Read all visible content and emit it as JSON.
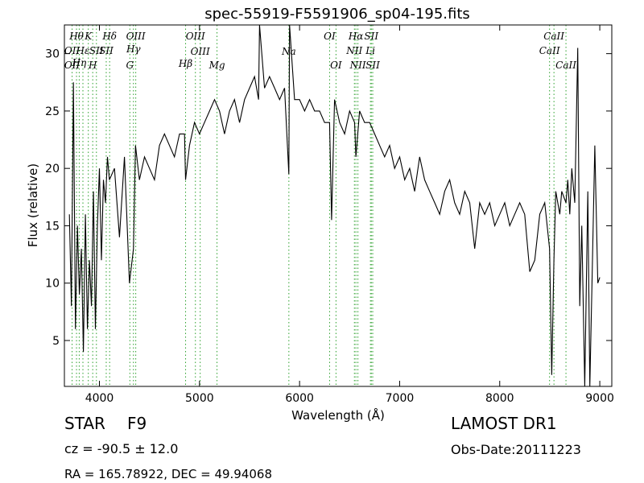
{
  "chart_data": {
    "type": "line",
    "title": "spec-55919-F5591906_sp04-195.fits",
    "xlabel": "Wavelength (Å)",
    "ylabel": "Flux (relative)",
    "xlim": [
      3650,
      9120
    ],
    "ylim": [
      1.0,
      32.5
    ],
    "xticks": [
      4000,
      5000,
      6000,
      7000,
      8000,
      9000
    ],
    "yticks": [
      5,
      10,
      15,
      20,
      25,
      30
    ],
    "grid": false,
    "line_color": "#000000",
    "marker_color": "#2ca02c",
    "series": [
      {
        "x": [
          3700,
          3720,
          3740,
          3760,
          3780,
          3800,
          3820,
          3840,
          3860,
          3880,
          3900,
          3920,
          3940,
          3960,
          3980,
          4000,
          4020,
          4040,
          4060,
          4080,
          4100,
          4150,
          4200,
          4250,
          4300,
          4340,
          4360,
          4400,
          4450,
          4500,
          4550,
          4600,
          4650,
          4700,
          4750,
          4800,
          4850,
          4861,
          4900,
          4950,
          5000,
          5050,
          5100,
          5150,
          5200,
          5250,
          5300,
          5350,
          5400,
          5450,
          5500,
          5550,
          5590,
          5600,
          5650,
          5700,
          5750,
          5800,
          5850,
          5893,
          5900,
          5950,
          6000,
          6050,
          6100,
          6150,
          6200,
          6250,
          6300,
          6320,
          6350,
          6400,
          6450,
          6500,
          6550,
          6563,
          6600,
          6650,
          6700,
          6750,
          6800,
          6850,
          6900,
          6950,
          7000,
          7050,
          7100,
          7150,
          7200,
          7250,
          7300,
          7350,
          7400,
          7450,
          7500,
          7550,
          7600,
          7650,
          7700,
          7750,
          7800,
          7850,
          7900,
          7950,
          8000,
          8050,
          8100,
          8150,
          8200,
          8250,
          8300,
          8350,
          8400,
          8450,
          8498,
          8520,
          8542,
          8560,
          8600,
          8620,
          8662,
          8680,
          8700,
          8720,
          8750,
          8780,
          8800,
          8820,
          8850,
          8880,
          8900,
          8920,
          8950,
          8980,
          9000
        ],
        "y": [
          16,
          8,
          27.5,
          6,
          15,
          9,
          13,
          4,
          16,
          6,
          12,
          8,
          18,
          6,
          15,
          20,
          12,
          19,
          17,
          21,
          19,
          20,
          14,
          21,
          10,
          13,
          22,
          19,
          21,
          20,
          19,
          22,
          23,
          22,
          21,
          23,
          23,
          19,
          22,
          24,
          23,
          24,
          25,
          26,
          25,
          23,
          25,
          26,
          24,
          26,
          27,
          28,
          26,
          32.5,
          27,
          28,
          27,
          26,
          27,
          19.5,
          32.5,
          26,
          26,
          25,
          26,
          25,
          25,
          24,
          24,
          15.5,
          26,
          24,
          23,
          25,
          24,
          21,
          25,
          24,
          24,
          23,
          22,
          21,
          22,
          20,
          21,
          19,
          20,
          18,
          21,
          19,
          18,
          17,
          16,
          18,
          19,
          17,
          16,
          18,
          17,
          13,
          17,
          16,
          17,
          15,
          16,
          17,
          15,
          16,
          17,
          16,
          11,
          12,
          16,
          17,
          13,
          2,
          12,
          18,
          16,
          18,
          17,
          19,
          16,
          20,
          17,
          30.5,
          8,
          15,
          1,
          18,
          1,
          9,
          22,
          10,
          10.5
        ]
      }
    ],
    "line_markers": [
      {
        "x": 3727,
        "label": "OII",
        "row": 2
      },
      {
        "x": 3727,
        "label": "OII",
        "row": 4
      },
      {
        "x": 3771,
        "label": "Hθ",
        "row": 1
      },
      {
        "x": 3798,
        "label": "Hη",
        "row": 3
      },
      {
        "x": 3835,
        "label": "Hε",
        "row": 2
      },
      {
        "x": 3889,
        "label": "K",
        "row": 1
      },
      {
        "x": 3933,
        "label": "H",
        "row": 4
      },
      {
        "x": 3970,
        "label": "SII",
        "row": 2
      },
      {
        "x": 4068,
        "label": "SII",
        "row": 2
      },
      {
        "x": 4102,
        "label": "Hδ",
        "row": 1
      },
      {
        "x": 4304,
        "label": "G",
        "row": 4
      },
      {
        "x": 4340,
        "label": "Hγ",
        "row": 3
      },
      {
        "x": 4363,
        "label": "OIII",
        "row": 1
      },
      {
        "x": 4861,
        "label": "Hβ",
        "row": 4
      },
      {
        "x": 4959,
        "label": "OIII",
        "row": 1
      },
      {
        "x": 5007,
        "label": "OIII",
        "row": 2
      },
      {
        "x": 5175,
        "label": "Mg",
        "row": 4
      },
      {
        "x": 5893,
        "label": "Na",
        "row": 3
      },
      {
        "x": 6300,
        "label": "OI",
        "row": 1
      },
      {
        "x": 6364,
        "label": "OI",
        "row": 4
      },
      {
        "x": 6548,
        "label": "NII",
        "row": 2
      },
      {
        "x": 6563,
        "label": "Hα",
        "row": 1
      },
      {
        "x": 6583,
        "label": "NII",
        "row": 4
      },
      {
        "x": 6708,
        "label": "Li",
        "row": 2
      },
      {
        "x": 6717,
        "label": "SII",
        "row": 1
      },
      {
        "x": 6731,
        "label": "SII",
        "row": 4
      },
      {
        "x": 8498,
        "label": "CaII",
        "row": 2
      },
      {
        "x": 8542,
        "label": "CaII",
        "row": 1
      },
      {
        "x": 8662,
        "label": "CaII",
        "row": 4
      }
    ]
  },
  "info": {
    "object_class": "STAR",
    "subclass": "F9",
    "survey": "LAMOST DR1",
    "redshift": "cz = -90.5 ± 12.0",
    "obs_date": "Obs-Date:20111223",
    "coords": "RA = 165.78922, DEC = 49.94068"
  }
}
